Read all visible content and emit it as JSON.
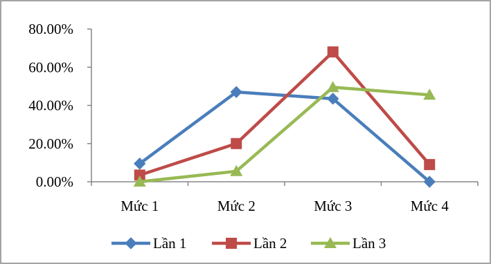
{
  "chart_data": {
    "type": "line",
    "categories": [
      "Mức 1",
      "Mức 2",
      "Mức 3",
      "Mức 4"
    ],
    "series": [
      {
        "name": "Lần 1",
        "values": [
          0.095,
          0.47,
          0.435,
          0.0
        ],
        "color": "#4A7EBB",
        "marker": "diamond"
      },
      {
        "name": "Lần 2",
        "values": [
          0.035,
          0.2,
          0.68,
          0.09
        ],
        "color": "#BE4B48",
        "marker": "square"
      },
      {
        "name": "Lần 3",
        "values": [
          0.0,
          0.055,
          0.495,
          0.455
        ],
        "color": "#98B954",
        "marker": "triangle"
      }
    ],
    "y_ticks": [
      "0.00%",
      "20.00%",
      "40.00%",
      "60.00%",
      "80.00%"
    ],
    "y_tick_values": [
      0,
      0.2,
      0.4,
      0.6,
      0.8
    ],
    "ylim": [
      0,
      0.8
    ],
    "grid": false,
    "legend_position": "bottom",
    "axis_color": "#868686",
    "border_color": "#868686"
  }
}
